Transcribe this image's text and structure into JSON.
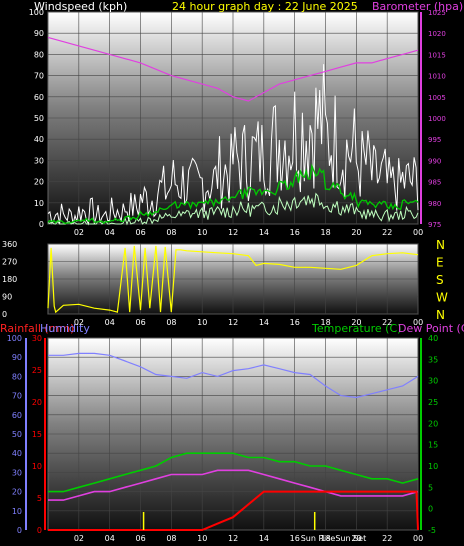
{
  "header": {
    "title_left": "Windspeed (kph)",
    "title_center": "24 hour graph day : 22 June 2025",
    "title_right": "Barometer (hpa)"
  },
  "mid": {
    "bottom_left": "Rainfall (mm)",
    "bottom_left2": "Humidity",
    "bottom_right": "Temperature (C)",
    "bottom_right2": "Dew Point (C)"
  },
  "colors": {
    "wind_gust": "#ffffff",
    "wind_avg": "#00c800",
    "wind_low": "#bfffbf",
    "barometer": "#e040e0",
    "direction": "#ffff00",
    "humidity": "#8080ff",
    "temperature": "#00cc00",
    "dewpoint": "#e040e0",
    "rainfall": "#ff0000",
    "sun": "#ffff00"
  },
  "chart_data": [
    {
      "type": "line",
      "name": "wind_barometer",
      "xlabel": "",
      "ylabel": "",
      "x_ticks": [
        "02",
        "04",
        "06",
        "08",
        "10",
        "12",
        "14",
        "16",
        "18",
        "20",
        "22",
        "00"
      ],
      "y_left_label": "Windspeed (kph)",
      "y_left_ticks": [
        "0",
        "10",
        "20",
        "30",
        "40",
        "50",
        "60",
        "70",
        "80",
        "90",
        "100"
      ],
      "y_left_range": [
        0,
        100
      ],
      "y_right_label": "Barometer (hpa)",
      "y_right_ticks": [
        "975",
        "980",
        "985",
        "990",
        "995",
        "1000",
        "1005",
        "1010",
        "1015",
        "1020",
        "1025"
      ],
      "y_right_range": [
        975,
        1025
      ],
      "barometer": {
        "x_hours": [
          0,
          1,
          2,
          3,
          4,
          6,
          8,
          10,
          11,
          12,
          13,
          14,
          15,
          16,
          17,
          18,
          19,
          20,
          21,
          22,
          23,
          24
        ],
        "values": [
          1019,
          1018,
          1017,
          1016,
          1015,
          1013,
          1010,
          1008,
          1007,
          1005,
          1004,
          1006,
          1008,
          1009,
          1010,
          1011,
          1012,
          1013,
          1013,
          1014,
          1015,
          1016
        ]
      },
      "wind_gust_hourly": [
        5,
        4,
        6,
        4,
        6,
        8,
        12,
        16,
        20,
        18,
        20,
        25,
        30,
        32,
        38,
        40,
        45,
        48,
        40,
        35,
        28,
        22,
        18,
        20
      ],
      "wind_avg_hourly": [
        1,
        1,
        2,
        1,
        2,
        3,
        5,
        7,
        9,
        9,
        10,
        11,
        14,
        15,
        16,
        18,
        22,
        24,
        18,
        14,
        10,
        9,
        8,
        10
      ],
      "wind_low_hourly": [
        0,
        0,
        0,
        0,
        0,
        1,
        2,
        3,
        4,
        5,
        5,
        6,
        7,
        7,
        8,
        10,
        12,
        12,
        9,
        7,
        5,
        4,
        4,
        5
      ]
    },
    {
      "type": "line",
      "name": "wind_direction",
      "x_ticks": [
        "02",
        "04",
        "06",
        "08",
        "10",
        "12",
        "14",
        "16",
        "18",
        "20",
        "22",
        "00"
      ],
      "y_ticks": [
        "0",
        "90",
        "180",
        "270",
        "360"
      ],
      "y_range": [
        0,
        360
      ],
      "y_right_labels": [
        "N",
        "W",
        "S",
        "E",
        "N"
      ],
      "x_hours": [
        0,
        0.2,
        0.4,
        0.5,
        1,
        2,
        3,
        4,
        4.5,
        5,
        5.3,
        5.6,
        6,
        6.3,
        6.6,
        7,
        7.3,
        7.6,
        8,
        8.3,
        8.6,
        9,
        10,
        11,
        12,
        13,
        13.5,
        14,
        15,
        16,
        17,
        18,
        19,
        20,
        21,
        22,
        23,
        24
      ],
      "values": [
        30,
        340,
        40,
        10,
        45,
        50,
        30,
        20,
        10,
        340,
        10,
        350,
        20,
        340,
        30,
        350,
        10,
        345,
        10,
        330,
        330,
        325,
        320,
        315,
        310,
        300,
        250,
        260,
        255,
        240,
        240,
        235,
        230,
        250,
        300,
        310,
        315,
        305
      ]
    },
    {
      "type": "line",
      "name": "rain_humidity_temperature",
      "x_ticks": [
        "02",
        "04",
        "06",
        "08",
        "10",
        "12",
        "14",
        "16",
        "18",
        "20",
        "22",
        "00"
      ],
      "y_left1_label": "Humidity",
      "y_left1_ticks": [
        "0",
        "10",
        "20",
        "30",
        "40",
        "50",
        "60",
        "70",
        "80",
        "90",
        "100"
      ],
      "y_left1_range": [
        0,
        100
      ],
      "y_left2_label": "Rainfall (mm)",
      "y_left2_ticks": [
        "0",
        "5",
        "10",
        "15",
        "20",
        "25",
        "30"
      ],
      "y_left2_range": [
        0,
        30
      ],
      "y_right_label": "Temperature (C)",
      "y_right_ticks": [
        "-5",
        "0",
        "5",
        "10",
        "15",
        "20",
        "25",
        "30",
        "35",
        "40"
      ],
      "y_right_range": [
        -5,
        40
      ],
      "sun_labels": [
        "Sun Rise",
        "Sun Set"
      ],
      "sun_hours": [
        6.2,
        17.3
      ],
      "humidity": {
        "x_hours": [
          0,
          1,
          2,
          3,
          4,
          5,
          6,
          7,
          8,
          9,
          10,
          11,
          12,
          13,
          14,
          15,
          16,
          17,
          18,
          19,
          20,
          21,
          22,
          23,
          24
        ],
        "values": [
          91,
          91,
          92,
          92,
          91,
          88,
          85,
          81,
          80,
          79,
          82,
          80,
          83,
          84,
          86,
          84,
          82,
          81,
          75,
          70,
          69,
          71,
          73,
          75,
          80
        ]
      },
      "temperature": {
        "x_hours": [
          0,
          1,
          2,
          3,
          4,
          5,
          6,
          7,
          8,
          9,
          10,
          11,
          12,
          13,
          14,
          15,
          16,
          17,
          18,
          19,
          20,
          21,
          22,
          23,
          24
        ],
        "values": [
          4,
          4,
          5,
          6,
          7,
          8,
          9,
          10,
          12,
          13,
          13,
          13,
          13,
          12,
          12,
          11,
          11,
          10,
          10,
          9,
          8,
          7,
          7,
          6,
          7
        ]
      },
      "dewpoint": {
        "x_hours": [
          0,
          1,
          2,
          3,
          4,
          5,
          6,
          7,
          8,
          9,
          10,
          11,
          12,
          13,
          14,
          15,
          16,
          17,
          18,
          19,
          20,
          21,
          22,
          23,
          24
        ],
        "values": [
          2,
          2,
          3,
          4,
          4,
          5,
          6,
          7,
          8,
          8,
          8,
          9,
          9,
          9,
          8,
          7,
          6,
          5,
          4,
          3,
          3,
          3,
          3,
          3,
          4
        ]
      },
      "rainfall": {
        "x_hours": [
          0,
          2,
          4,
          6,
          8,
          10,
          11,
          12,
          12.5,
          13,
          13.5,
          14,
          15,
          16,
          18,
          20,
          22,
          23.9,
          24
        ],
        "values": [
          0,
          0,
          0,
          0,
          0,
          0,
          1,
          2,
          3,
          4,
          5,
          6,
          6,
          6,
          6,
          6,
          6,
          6,
          0
        ]
      }
    }
  ]
}
